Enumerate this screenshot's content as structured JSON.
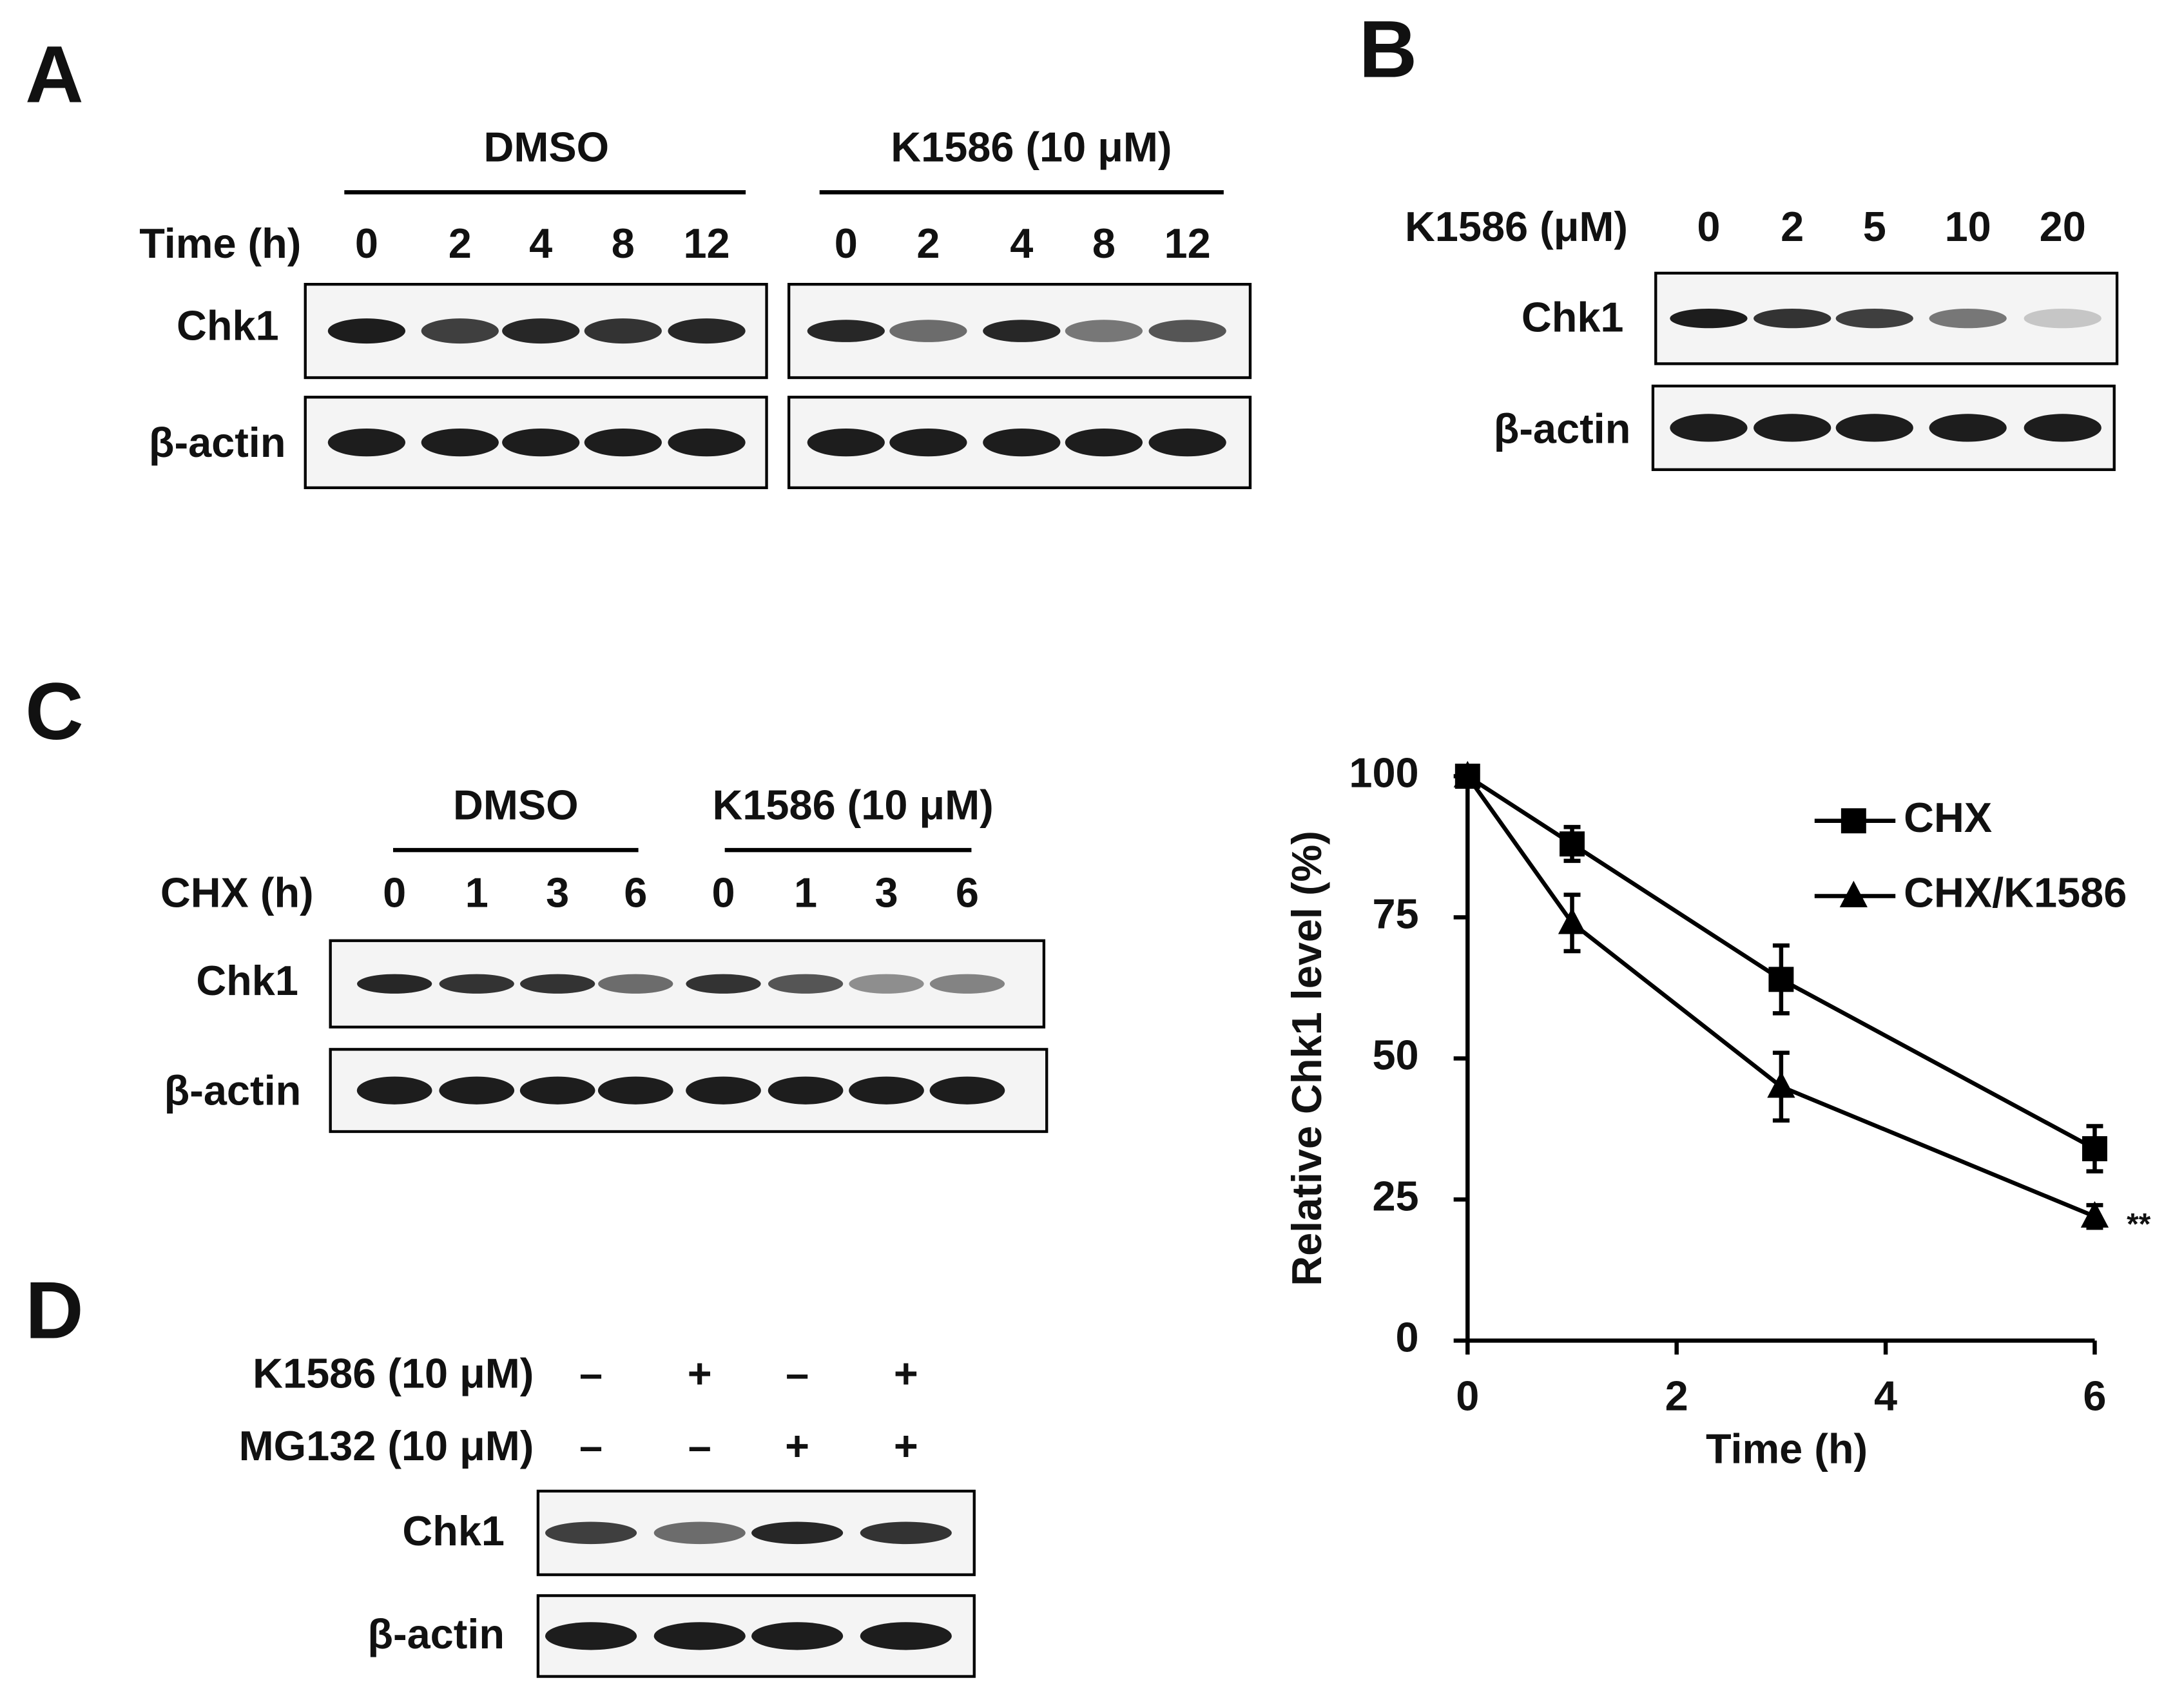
{
  "panel_labels": [
    "A",
    "B",
    "C",
    "D"
  ],
  "panel_a": {
    "groups": [
      {
        "name": "DMSO",
        "lanes": [
          "0",
          "2",
          "4",
          "8",
          "12"
        ]
      },
      {
        "name": "K1586 (10 μM)",
        "lanes": [
          "0",
          "2",
          "4",
          "8",
          "12"
        ]
      }
    ],
    "row_label": "Time (h)",
    "blots": [
      "Chk1",
      "β-actin"
    ]
  },
  "panel_b": {
    "row_label": "K1586 (μM)",
    "lanes": [
      "0",
      "2",
      "5",
      "10",
      "20"
    ],
    "blots": [
      "Chk1",
      "β-actin"
    ]
  },
  "panel_c": {
    "groups": [
      {
        "name": "DMSO",
        "lanes": [
          "0",
          "1",
          "3",
          "6"
        ]
      },
      {
        "name": "K1586 (10 μM)",
        "lanes": [
          "0",
          "1",
          "3",
          "6"
        ]
      }
    ],
    "row_label": "CHX (h)",
    "blots": [
      "Chk1",
      "β-actin"
    ]
  },
  "panel_d": {
    "rows": [
      {
        "label": "K1586 (10 μM)",
        "lanes": [
          "–",
          "+",
          "–",
          "+"
        ]
      },
      {
        "label": "MG132 (10 μM)",
        "lanes": [
          "–",
          "–",
          "+",
          "+"
        ]
      }
    ],
    "blots": [
      "Chk1",
      "β-actin"
    ]
  },
  "chart_data": {
    "type": "line",
    "x_label": "Time (h)",
    "y_label": "Relative  Chk1  level  (%)",
    "x": [
      0,
      1,
      3,
      6
    ],
    "series": [
      {
        "name": "CHX",
        "color": "#000000",
        "marker": "square",
        "values": [
          100,
          88,
          64,
          34
        ],
        "errors": [
          0,
          3,
          6,
          4
        ]
      },
      {
        "name": "CHX/K1586",
        "color": "#000000",
        "marker": "triangle",
        "values": [
          100,
          74,
          45,
          22
        ],
        "errors": [
          0,
          5,
          6,
          2
        ]
      }
    ],
    "xlim": [
      0,
      6
    ],
    "xticks": [
      0,
      2,
      4,
      6
    ],
    "ylim": [
      0,
      100
    ],
    "yticks": [
      0,
      25,
      50,
      75,
      100
    ],
    "annotation": "**",
    "grid": false
  }
}
